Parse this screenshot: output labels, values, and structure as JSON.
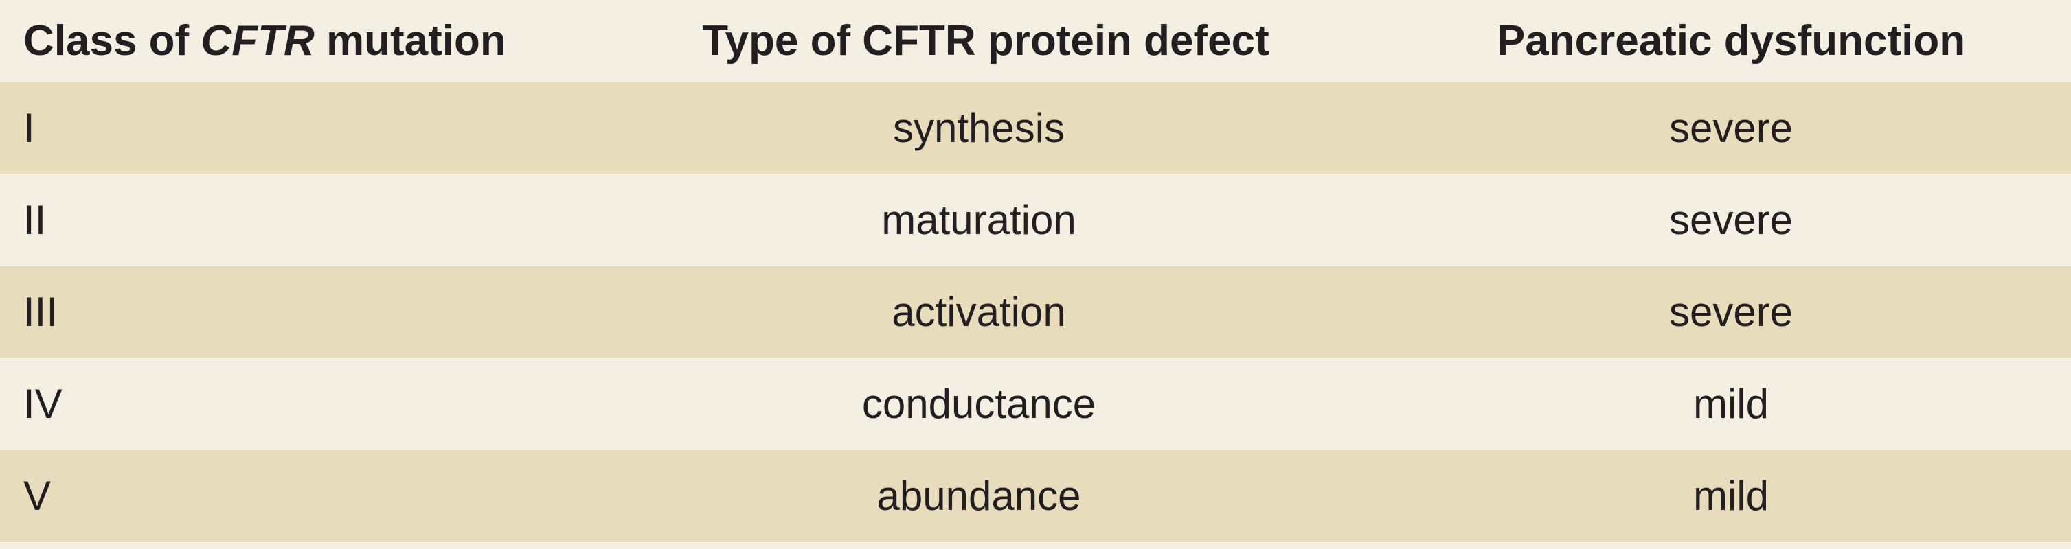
{
  "table": {
    "headers": {
      "col1_italic": "CFTR",
      "col1_prefix": "Class of ",
      "col1_suffix": " mutation",
      "col2": "Type of CFTR protein defect",
      "col3": "Pancreatic dysfunction"
    },
    "rows": [
      {
        "class": "I",
        "defect": "synthesis",
        "dysfunction": "severe"
      },
      {
        "class": "II",
        "defect": "maturation",
        "dysfunction": "severe"
      },
      {
        "class": "III",
        "defect": "activation",
        "dysfunction": "severe"
      },
      {
        "class": "IV",
        "defect": "conductance",
        "dysfunction": "mild"
      },
      {
        "class": "V",
        "defect": "abundance",
        "dysfunction": "mild"
      }
    ],
    "colors": {
      "shaded_row": "#e7dcbc",
      "plain_row": "#f3efe3",
      "text": "#231f20"
    }
  }
}
